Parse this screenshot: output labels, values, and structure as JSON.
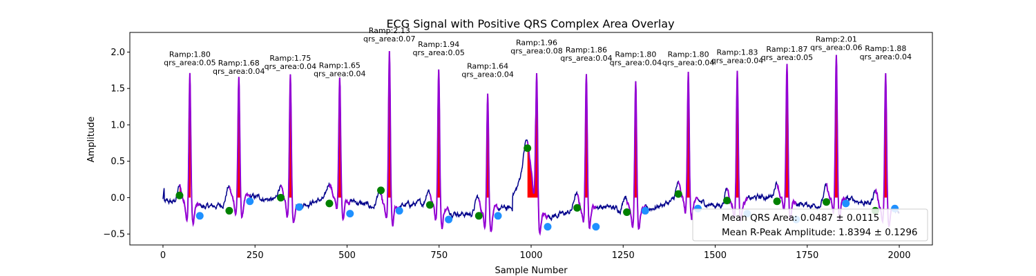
{
  "chart_data": {
    "type": "line",
    "title": "ECG Signal with Positive QRS Complex Area Overlay",
    "xlabel": "Sample Number",
    "ylabel": "Amplitude",
    "xlim": [
      -90,
      2090
    ],
    "ylim": [
      -0.65,
      2.27
    ],
    "x_ticks": [
      0,
      250,
      500,
      750,
      1000,
      1250,
      1500,
      1750,
      2000
    ],
    "y_ticks": [
      -0.5,
      0.0,
      0.5,
      1.0,
      1.5,
      2.0
    ],
    "x_tick_labels": [
      "0",
      "250",
      "500",
      "750",
      "1000",
      "1250",
      "1500",
      "1750",
      "2000"
    ],
    "y_tick_labels": [
      "−0.5",
      "0.0",
      "0.5",
      "1.0",
      "1.5",
      "2.0"
    ],
    "grid": false,
    "legend_placement": "lower right",
    "colors": {
      "signal": "#00008b",
      "highlight": "#9400d3",
      "qrs_fill": "#ff0000",
      "q_point": "#008000",
      "s_point": "#1e90ff"
    },
    "beats": [
      {
        "r_x": 73,
        "r_amp": 1.8,
        "qrs_area": 0.05,
        "label1": "Ramp:1.80",
        "label2": "qrs_area:0.05",
        "q_x": 45,
        "q_y": 0.03,
        "s_x": 100,
        "s_y": -0.25,
        "q_on": 45,
        "s_off": 75
      },
      {
        "r_x": 206,
        "r_amp": 1.68,
        "qrs_area": 0.04,
        "label1": "Ramp:1.68",
        "label2": "qrs_area:0.04",
        "q_x": 180,
        "q_y": -0.18,
        "s_x": 236,
        "s_y": -0.05,
        "q_on": 196,
        "s_off": 214
      },
      {
        "r_x": 346,
        "r_amp": 1.75,
        "qrs_area": 0.04,
        "label1": "Ramp:1.75",
        "label2": "qrs_area:0.04",
        "q_x": 320,
        "q_y": 0.0,
        "s_x": 370,
        "s_y": -0.13,
        "q_on": 334,
        "s_off": 352
      },
      {
        "r_x": 480,
        "r_amp": 1.65,
        "qrs_area": 0.04,
        "label1": "Ramp:1.65",
        "label2": "qrs_area:0.04",
        "q_x": 452,
        "q_y": -0.08,
        "s_x": 508,
        "s_y": -0.22,
        "q_on": 473,
        "s_off": 486
      },
      {
        "r_x": 615,
        "r_amp": 2.13,
        "qrs_area": 0.07,
        "label1": "Ramp:2.13",
        "label2": "qrs_area:0.07",
        "q_x": 592,
        "q_y": 0.1,
        "s_x": 642,
        "s_y": -0.18,
        "q_on": 600,
        "s_off": 640
      },
      {
        "r_x": 749,
        "r_amp": 1.94,
        "qrs_area": 0.05,
        "label1": "Ramp:1.94",
        "label2": "qrs_area:0.05",
        "q_x": 725,
        "q_y": -0.1,
        "s_x": 776,
        "s_y": -0.3,
        "q_on": 740,
        "s_off": 757
      },
      {
        "r_x": 882,
        "r_amp": 1.64,
        "qrs_area": 0.04,
        "label1": "Ramp:1.64",
        "label2": "qrs_area:0.04",
        "q_x": 858,
        "q_y": -0.25,
        "s_x": 910,
        "s_y": -0.25,
        "q_on": 874,
        "s_off": 900
      },
      {
        "r_x": 1015,
        "r_amp": 1.96,
        "qrs_area": 0.08,
        "label1": "Ramp:1.96",
        "label2": "qrs_area:0.08",
        "q_x": 990,
        "q_y": 0.68,
        "s_x": 1045,
        "s_y": -0.4,
        "q_on": 990,
        "s_off": 1022
      },
      {
        "r_x": 1150,
        "r_amp": 1.86,
        "qrs_area": 0.04,
        "label1": "Ramp:1.86",
        "label2": "qrs_area:0.04",
        "q_x": 1125,
        "q_y": -0.14,
        "s_x": 1176,
        "s_y": -0.4,
        "q_on": 1140,
        "s_off": 1160
      },
      {
        "r_x": 1284,
        "r_amp": 1.8,
        "qrs_area": 0.04,
        "label1": "Ramp:1.80",
        "label2": "qrs_area:0.04",
        "q_x": 1260,
        "q_y": -0.2,
        "s_x": 1310,
        "s_y": -0.18,
        "q_on": 1275,
        "s_off": 1295
      },
      {
        "r_x": 1427,
        "r_amp": 1.8,
        "qrs_area": 0.04,
        "label1": "Ramp:1.80",
        "label2": "qrs_area:0.04",
        "q_x": 1400,
        "q_y": 0.05,
        "s_x": 1453,
        "s_y": -0.15,
        "q_on": 1418,
        "s_off": 1440
      },
      {
        "r_x": 1560,
        "r_amp": 1.83,
        "qrs_area": 0.04,
        "label1": "Ramp:1.83",
        "label2": "qrs_area:0.04",
        "q_x": 1532,
        "q_y": -0.04,
        "s_x": 1587,
        "s_y": -0.22,
        "q_on": 1552,
        "s_off": 1568
      },
      {
        "r_x": 1695,
        "r_amp": 1.87,
        "qrs_area": 0.05,
        "label1": "Ramp:1.87",
        "label2": "qrs_area:0.05",
        "q_x": 1668,
        "q_y": -0.05,
        "s_x": 1720,
        "s_y": -0.3,
        "q_on": 1682,
        "s_off": 1702
      },
      {
        "r_x": 1829,
        "r_amp": 2.01,
        "qrs_area": 0.06,
        "label1": "Ramp:2.01",
        "label2": "qrs_area:0.06",
        "q_x": 1802,
        "q_y": -0.06,
        "s_x": 1855,
        "s_y": -0.08,
        "q_on": 1820,
        "s_off": 1845
      },
      {
        "r_x": 1963,
        "r_amp": 1.88,
        "qrs_area": 0.04,
        "label1": "Ramp:1.88",
        "label2": "qrs_area:0.04",
        "q_x": 1935,
        "q_y": -0.18,
        "s_x": 1988,
        "s_y": -0.15,
        "q_on": 1955,
        "s_off": 1970
      }
    ],
    "legend": [
      {
        "label": "Mean QRS Area: 0.0487 ± 0.0115"
      },
      {
        "label": "Mean R-Peak Amplitude: 1.8394 ± 0.1296"
      }
    ]
  }
}
